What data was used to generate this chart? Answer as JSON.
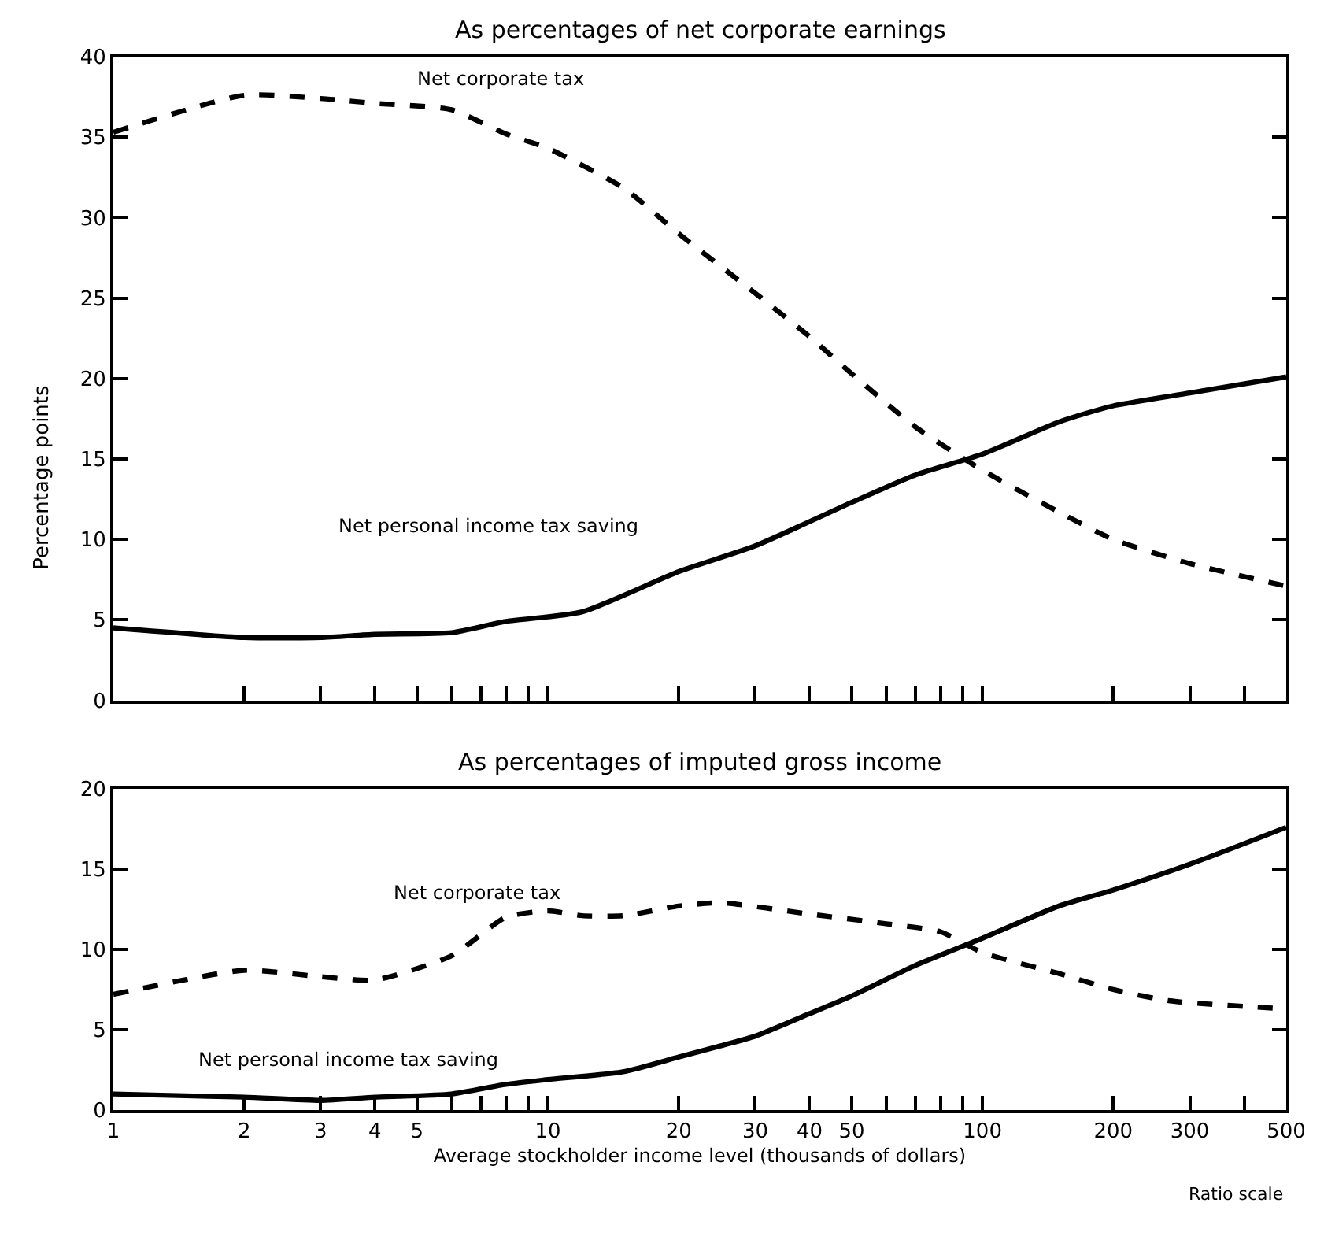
{
  "chart_data": [
    {
      "type": "line",
      "title": "As percentages of net corporate earnings",
      "ylabel": "Percentage points",
      "log": "x",
      "xlim": [
        1,
        500
      ],
      "ylim": [
        0,
        40
      ],
      "yticks": [
        0,
        5,
        10,
        15,
        20,
        25,
        30,
        35,
        40
      ],
      "xticks": [
        {
          "value": 1,
          "label": null
        },
        {
          "value": 2,
          "label": null
        },
        {
          "value": 3,
          "label": null
        },
        {
          "value": 4,
          "label": null
        },
        {
          "value": 5,
          "label": null
        },
        {
          "value": 6,
          "label": null
        },
        {
          "value": 7,
          "label": null
        },
        {
          "value": 8,
          "label": null
        },
        {
          "value": 9,
          "label": null
        },
        {
          "value": 10,
          "label": null
        },
        {
          "value": 20,
          "label": null
        },
        {
          "value": 30,
          "label": null
        },
        {
          "value": 40,
          "label": null
        },
        {
          "value": 50,
          "label": null
        },
        {
          "value": 60,
          "label": null
        },
        {
          "value": 70,
          "label": null
        },
        {
          "value": 80,
          "label": null
        },
        {
          "value": 90,
          "label": null
        },
        {
          "value": 100,
          "label": null
        },
        {
          "value": 200,
          "label": null
        },
        {
          "value": 300,
          "label": null
        },
        {
          "value": 400,
          "label": null
        },
        {
          "value": 500,
          "label": null
        }
      ],
      "tick_labels": "y",
      "legend": false,
      "marker": "none",
      "series": [
        {
          "name": "Net corporate tax",
          "color": "#000000",
          "line_style": "dashed",
          "x": [
            1,
            2,
            3,
            4,
            6,
            8,
            10,
            15,
            20,
            30,
            40,
            50,
            70,
            100,
            150,
            200,
            300,
            500
          ],
          "values": [
            35.3,
            37.6,
            37.4,
            37.1,
            36.7,
            35.2,
            34.3,
            31.8,
            29.0,
            25.3,
            22.6,
            20.3,
            17.0,
            14.3,
            11.7,
            10.0,
            8.5,
            7.1
          ]
        },
        {
          "name": "Net personal income tax saving",
          "color": "#000000",
          "line_style": "solid",
          "x": [
            1,
            2,
            3,
            4,
            6,
            8,
            12,
            20,
            30,
            50,
            70,
            100,
            150,
            200,
            300,
            500
          ],
          "values": [
            4.5,
            3.9,
            3.9,
            4.1,
            4.2,
            4.9,
            5.5,
            8.0,
            9.6,
            12.3,
            14.0,
            15.3,
            17.3,
            18.3,
            19.1,
            20.1
          ]
        }
      ]
    },
    {
      "type": "line",
      "title": "As percentages of imputed gross income",
      "xlabel": "Average stockholder income level (thousands of dollars)",
      "log": "x",
      "xlim": [
        1,
        500
      ],
      "ylim": [
        0,
        20
      ],
      "yticks": [
        0,
        5,
        10,
        15,
        20
      ],
      "xticks": [
        1,
        2,
        3,
        4,
        5,
        {
          "value": 6,
          "label": null
        },
        {
          "value": 7,
          "label": null
        },
        {
          "value": 8,
          "label": null
        },
        {
          "value": 9,
          "label": null
        },
        10,
        20,
        30,
        40,
        50,
        {
          "value": 60,
          "label": null
        },
        {
          "value": 70,
          "label": null
        },
        {
          "value": 80,
          "label": null
        },
        {
          "value": 90,
          "label": null
        },
        100,
        200,
        300,
        {
          "value": 400,
          "label": null
        },
        500
      ],
      "legend": false,
      "marker": "none",
      "annotations": [
        "Ratio scale"
      ],
      "series": [
        {
          "name": "Net corporate tax",
          "color": "#000000",
          "line_style": "dashed",
          "x": [
            1,
            2,
            3,
            4,
            6,
            8,
            10,
            12,
            15,
            20,
            25,
            40,
            60,
            80,
            100,
            150,
            200,
            270,
            500
          ],
          "values": [
            7.2,
            8.7,
            8.3,
            8.1,
            9.6,
            12.0,
            12.4,
            12.1,
            12.1,
            12.7,
            12.9,
            12.2,
            11.6,
            11.1,
            9.8,
            8.5,
            7.5,
            6.8,
            6.3
          ]
        },
        {
          "name": "Net personal income tax saving",
          "color": "#000000",
          "line_style": "solid",
          "x": [
            1,
            2,
            3,
            4,
            6,
            8,
            10,
            15,
            20,
            25,
            30,
            40,
            50,
            70,
            100,
            150,
            200,
            300,
            500
          ],
          "values": [
            1.0,
            0.8,
            0.6,
            0.8,
            1.0,
            1.6,
            1.9,
            2.4,
            3.3,
            4.0,
            4.6,
            6.0,
            7.1,
            9.0,
            10.7,
            12.7,
            13.7,
            15.3,
            17.6
          ]
        }
      ]
    }
  ]
}
